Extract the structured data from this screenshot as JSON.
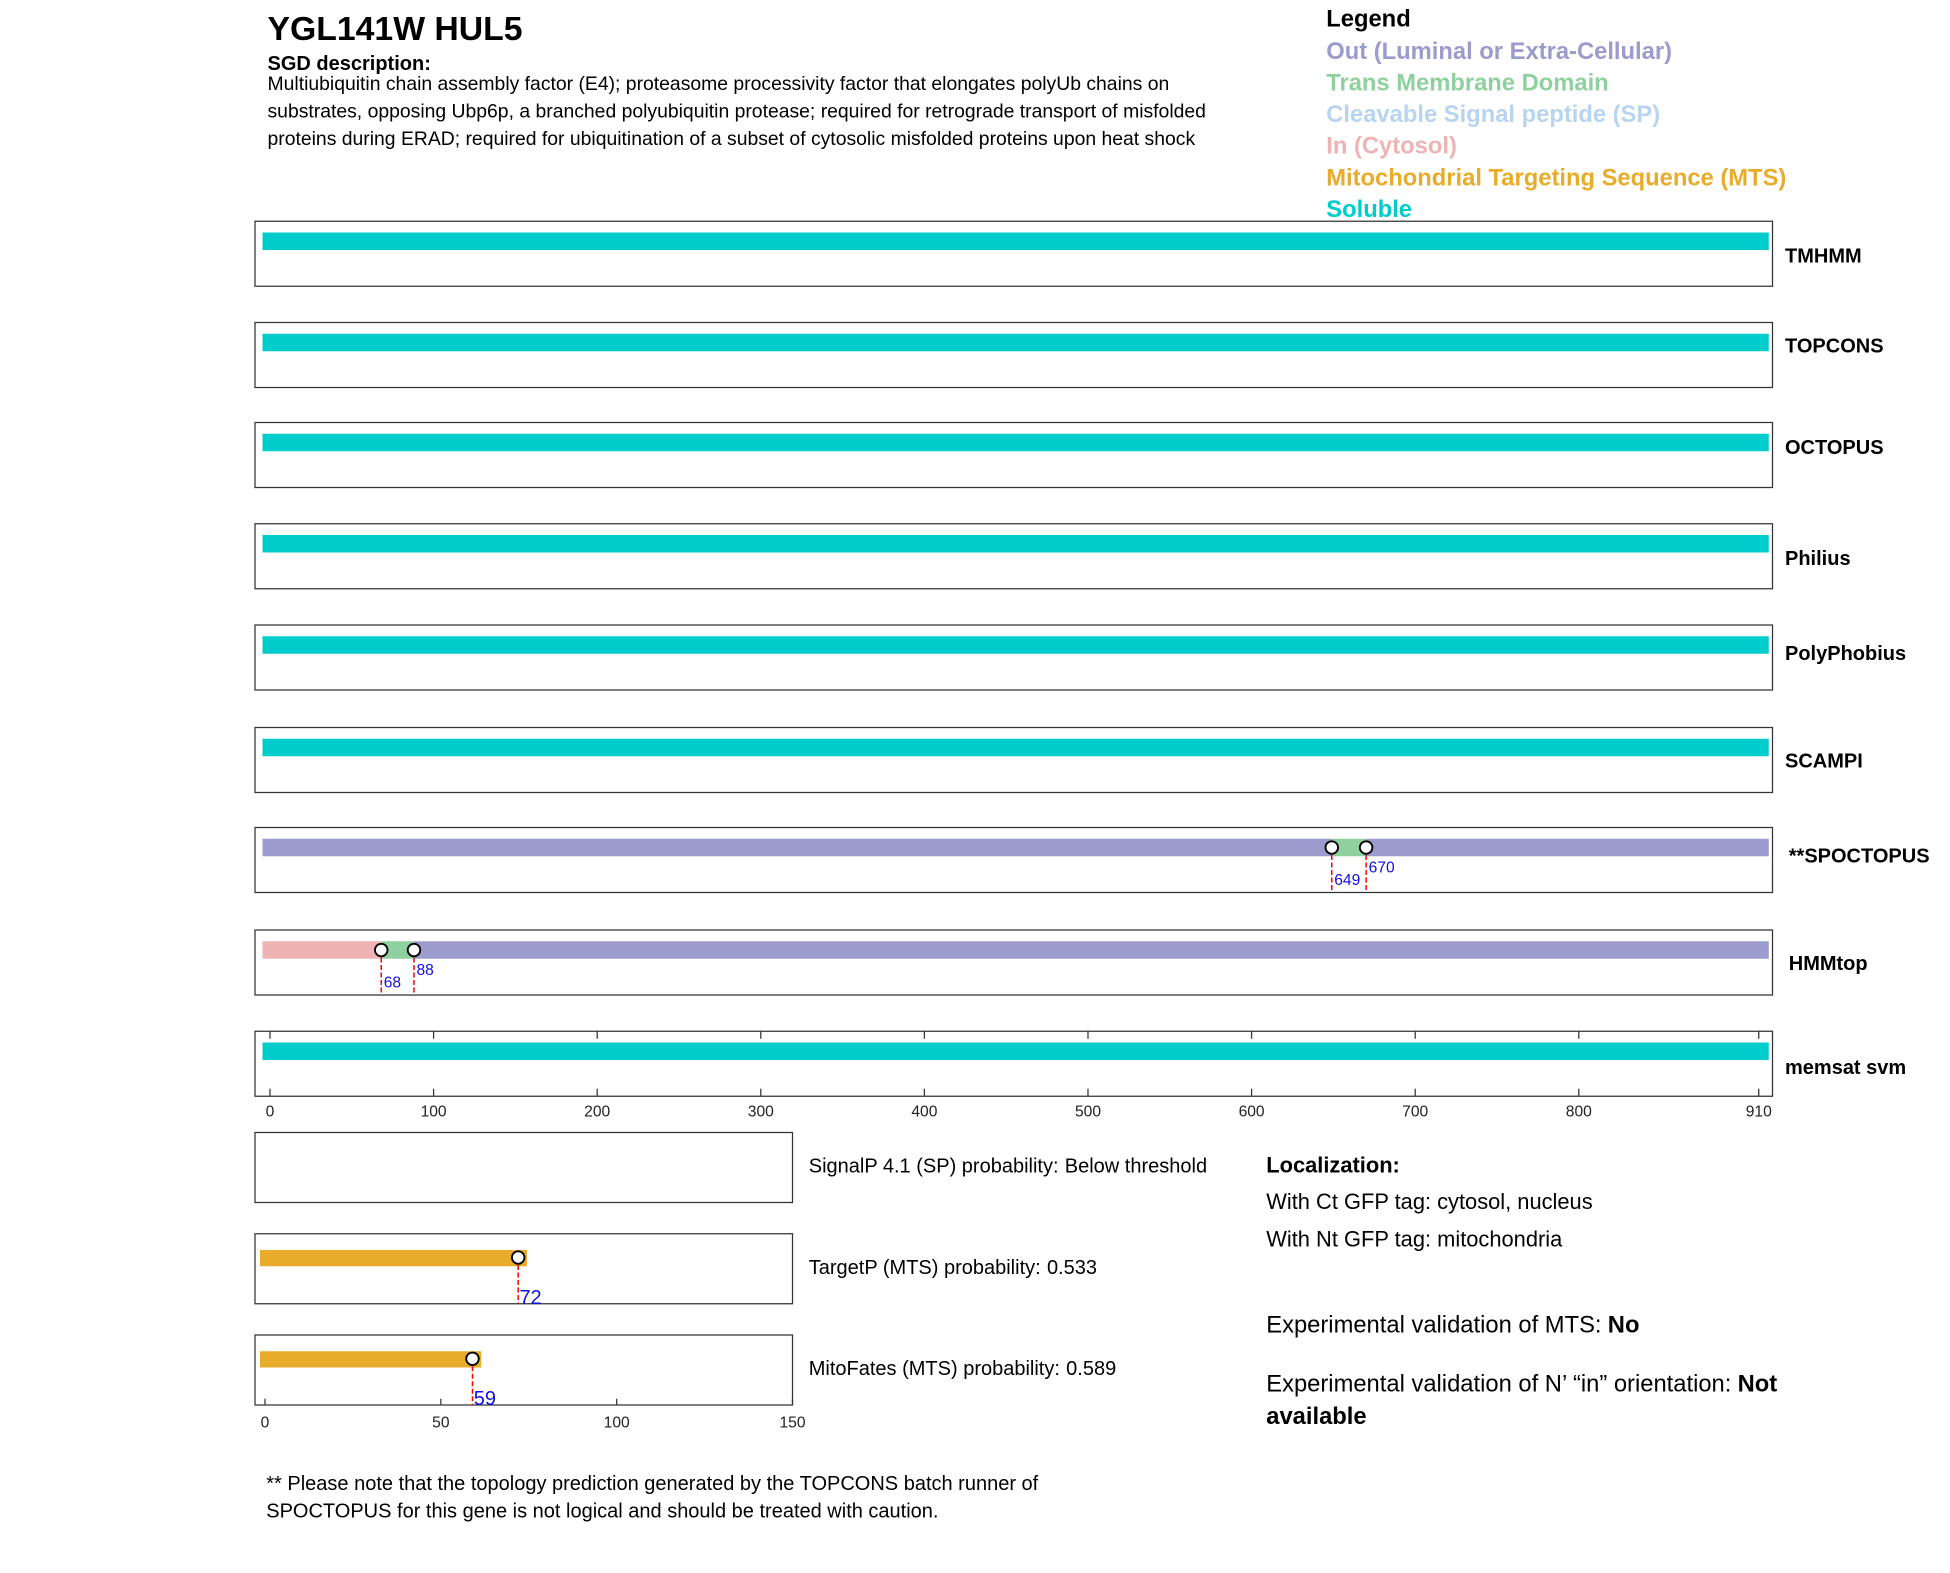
{
  "header": {
    "title": "YGL141W  HUL5",
    "sgd_label": "SGD description:",
    "description_lines": [
      "Multiubiquitin chain assembly factor (E4); proteasome processivity factor that elongates polyUb chains on",
      "substrates, opposing Ubp6p, a branched polyubiquitin protease; required for retrograde transport of misfolded",
      "proteins during ERAD; required for ubiquitination of a subset of cytosolic misfolded proteins upon heat shock"
    ]
  },
  "legend": {
    "title": "Legend",
    "items": [
      {
        "label": "Out (Luminal or Extra-Cellular)",
        "color": "#9b9bcd"
      },
      {
        "label": "Trans Membrane Domain",
        "color": "#8fd19e"
      },
      {
        "label": "Cleavable Signal peptide (SP)",
        "color": "#b8d4ee"
      },
      {
        "label": "In (Cytosol)",
        "color": "#f0b3b3"
      },
      {
        "label": "Mitochondrial Targeting Sequence (MTS)",
        "color": "#e8ac2a"
      },
      {
        "label": "Soluble",
        "color": "#00cccc"
      }
    ]
  },
  "topology": {
    "xlim": [
      0,
      910
    ],
    "xticks": [
      0,
      100,
      200,
      300,
      400,
      500,
      600,
      700,
      800,
      910
    ],
    "tracks": [
      {
        "name": "TMHMM",
        "segments": [
          {
            "start": 0,
            "end": 910,
            "color": "#00cccc"
          }
        ],
        "markers": []
      },
      {
        "name": "TOPCONS",
        "segments": [
          {
            "start": 0,
            "end": 910,
            "color": "#00cccc"
          }
        ],
        "markers": []
      },
      {
        "name": "OCTOPUS",
        "segments": [
          {
            "start": 0,
            "end": 910,
            "color": "#00cccc"
          }
        ],
        "markers": []
      },
      {
        "name": "Philius",
        "segments": [
          {
            "start": 0,
            "end": 910,
            "color": "#00cccc"
          }
        ],
        "markers": []
      },
      {
        "name": "PolyPhobius",
        "segments": [
          {
            "start": 0,
            "end": 910,
            "color": "#00cccc"
          }
        ],
        "markers": []
      },
      {
        "name": "SCAMPI",
        "segments": [
          {
            "start": 0,
            "end": 910,
            "color": "#00cccc"
          }
        ],
        "markers": []
      },
      {
        "name": "**SPOCTOPUS",
        "segments": [
          {
            "start": 0,
            "end": 649,
            "color": "#9b9bcd"
          },
          {
            "start": 649,
            "end": 670,
            "color": "#8fd19e"
          },
          {
            "start": 670,
            "end": 910,
            "color": "#9b9bcd"
          }
        ],
        "markers": [
          649,
          670
        ]
      },
      {
        "name": "HMMtop",
        "segments": [
          {
            "start": 0,
            "end": 68,
            "color": "#f0b3b3"
          },
          {
            "start": 68,
            "end": 88,
            "color": "#8fd19e"
          },
          {
            "start": 88,
            "end": 910,
            "color": "#9b9bcd"
          }
        ],
        "markers": [
          68,
          88
        ]
      },
      {
        "name": "memsat svm",
        "segments": [
          {
            "start": 0,
            "end": 910,
            "color": "#00cccc"
          }
        ],
        "markers": []
      }
    ]
  },
  "targeting": {
    "xlim": [
      0,
      150
    ],
    "xticks": [
      0,
      50,
      100,
      150
    ],
    "panels": [
      {
        "label": "SignalP 4.1 (SP) probability:",
        "result": "Below threshold"
      },
      {
        "label": "TargetP (MTS) probability:",
        "probability": 0.533,
        "mts_end": 72,
        "color": "#e8ac2a"
      },
      {
        "label": "MitoFates (MTS) probability:",
        "probability": 0.589,
        "mts_end": 59,
        "color": "#e8ac2a"
      }
    ]
  },
  "localization": {
    "title": "Localization:",
    "lines": [
      "With Ct GFP tag: cytosol, nucleus",
      "With Nt GFP tag: mitochondria"
    ],
    "mts_validation_label": "Experimental validation of MTS:",
    "mts_validation_value": "No",
    "orientation_label": "Experimental validation of N’ “in” orientation:",
    "orientation_value_lines": [
      "Not",
      "available"
    ]
  },
  "footnote_lines": [
    "** Please note that the topology prediction generated by the TOPCONS batch runner of",
    "SPOCTOPUS for this gene is not logical and should be treated with caution."
  ]
}
